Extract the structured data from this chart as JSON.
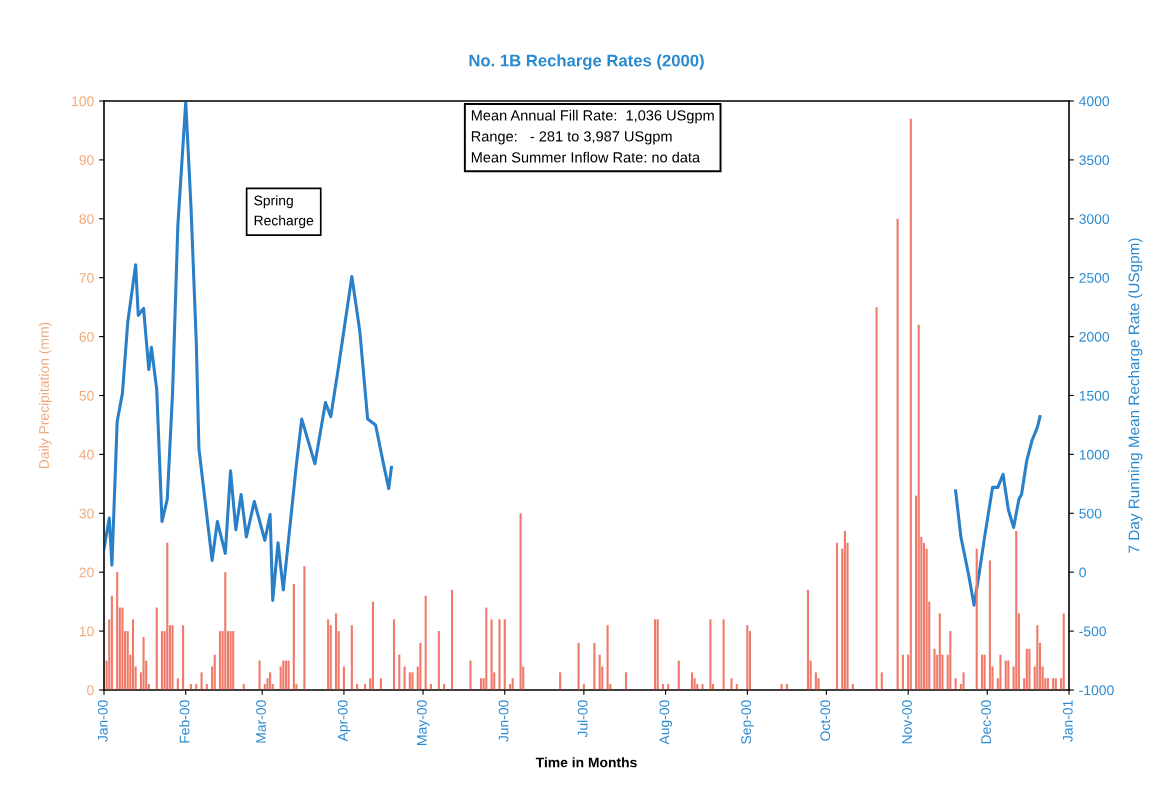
{
  "chart_data": {
    "type": "bar",
    "title": "No. 1B Recharge Rates (2000)",
    "xlabel": "Time in Months",
    "ylabel": "Daily Precipitation (mm)",
    "y2label": "7 Day Running Mean Recharge Rate (USgpm)",
    "xlim": [
      "2000-01-01",
      "2001-01-01"
    ],
    "xticks": [
      {
        "value": "2000-01-01",
        "label": "Jan-00"
      },
      {
        "value": "2000-02-01",
        "label": "Feb-00"
      },
      {
        "value": "2000-03-01",
        "label": "Mar-00"
      },
      {
        "value": "2000-04-01",
        "label": "Apr-00"
      },
      {
        "value": "2000-05-01",
        "label": "May-00"
      },
      {
        "value": "2000-06-01",
        "label": "Jun-00"
      },
      {
        "value": "2000-07-01",
        "label": "Jul-00"
      },
      {
        "value": "2000-08-01",
        "label": "Aug-00"
      },
      {
        "value": "2000-09-01",
        "label": "Sep-00"
      },
      {
        "value": "2000-10-01",
        "label": "Oct-00"
      },
      {
        "value": "2000-11-01",
        "label": "Nov-00"
      },
      {
        "value": "2000-12-01",
        "label": "Dec-00"
      },
      {
        "value": "2001-01-01",
        "label": "Jan-01"
      }
    ],
    "ylim": [
      0,
      100
    ],
    "yticks": [
      0,
      10,
      20,
      30,
      40,
      50,
      60,
      70,
      80,
      90,
      100
    ],
    "y2lim": [
      -1000,
      4000
    ],
    "y2ticks": [
      -1000,
      -500,
      0,
      500,
      1000,
      1500,
      2000,
      2500,
      3000,
      3500,
      4000
    ],
    "grid": false,
    "annotations": [
      "Spring\nRecharge",
      "Mean Annual Fill Rate:  1,036 USgpm\nRange:   - 281 to 3,987 USgpm\nMean Summer Inflow Rate: no data"
    ],
    "series": [
      {
        "axis": "y",
        "color": "#f07a6a",
        "x": [
          "2000-01-02",
          "2000-01-03",
          "2000-01-04",
          "2000-01-06",
          "2000-01-07",
          "2000-01-08",
          "2000-01-09",
          "2000-01-10",
          "2000-01-11",
          "2000-01-12",
          "2000-01-13",
          "2000-01-15",
          "2000-01-16",
          "2000-01-17",
          "2000-01-18",
          "2000-01-21",
          "2000-01-23",
          "2000-01-24",
          "2000-01-25",
          "2000-01-26",
          "2000-01-27",
          "2000-01-29",
          "2000-01-31",
          "2000-02-03",
          "2000-02-05",
          "2000-02-07",
          "2000-02-09",
          "2000-02-11",
          "2000-02-12",
          "2000-02-14",
          "2000-02-15",
          "2000-02-16",
          "2000-02-17",
          "2000-02-18",
          "2000-02-19",
          "2000-02-23",
          "2000-02-29",
          "2000-03-02",
          "2000-03-03",
          "2000-03-04",
          "2000-03-05",
          "2000-03-08",
          "2000-03-09",
          "2000-03-10",
          "2000-03-11",
          "2000-03-13",
          "2000-03-14",
          "2000-03-17",
          "2000-03-26",
          "2000-03-27",
          "2000-03-29",
          "2000-03-30",
          "2000-04-01",
          "2000-04-04",
          "2000-04-06",
          "2000-04-09",
          "2000-04-11",
          "2000-04-12",
          "2000-04-15",
          "2000-04-20",
          "2000-04-22",
          "2000-04-24",
          "2000-04-26",
          "2000-04-27",
          "2000-04-29",
          "2000-04-30",
          "2000-05-02",
          "2000-05-04",
          "2000-05-07",
          "2000-05-09",
          "2000-05-12",
          "2000-05-19",
          "2000-05-23",
          "2000-05-24",
          "2000-05-25",
          "2000-05-27",
          "2000-05-28",
          "2000-05-30",
          "2000-06-01",
          "2000-06-03",
          "2000-06-04",
          "2000-06-07",
          "2000-06-08",
          "2000-06-22",
          "2000-06-29",
          "2000-07-01",
          "2000-07-05",
          "2000-07-07",
          "2000-07-08",
          "2000-07-10",
          "2000-07-11",
          "2000-07-17",
          "2000-07-28",
          "2000-07-29",
          "2000-07-31",
          "2000-08-02",
          "2000-08-06",
          "2000-08-11",
          "2000-08-12",
          "2000-08-13",
          "2000-08-15",
          "2000-08-18",
          "2000-08-19",
          "2000-08-23",
          "2000-08-26",
          "2000-08-28",
          "2000-09-01",
          "2000-09-02",
          "2000-09-14",
          "2000-09-16",
          "2000-09-24",
          "2000-09-25",
          "2000-09-27",
          "2000-09-28",
          "2000-10-05",
          "2000-10-07",
          "2000-10-08",
          "2000-10-09",
          "2000-10-11",
          "2000-10-20",
          "2000-10-22",
          "2000-10-28",
          "2000-10-30",
          "2000-11-01",
          "2000-11-02",
          "2000-11-04",
          "2000-11-05",
          "2000-11-06",
          "2000-11-07",
          "2000-11-08",
          "2000-11-09",
          "2000-11-11",
          "2000-11-12",
          "2000-11-13",
          "2000-11-14",
          "2000-11-16",
          "2000-11-17",
          "2000-11-19",
          "2000-11-21",
          "2000-11-22",
          "2000-11-27",
          "2000-11-29",
          "2000-11-30",
          "2000-12-02",
          "2000-12-03",
          "2000-12-05",
          "2000-12-06",
          "2000-12-08",
          "2000-12-09",
          "2000-12-11",
          "2000-12-12",
          "2000-12-13",
          "2000-12-15",
          "2000-12-16",
          "2000-12-17",
          "2000-12-19",
          "2000-12-20",
          "2000-12-21",
          "2000-12-22",
          "2000-12-23",
          "2000-12-24",
          "2000-12-26",
          "2000-12-27",
          "2000-12-29",
          "2000-12-30"
        ],
        "values": [
          5,
          12,
          16,
          20,
          14,
          14,
          10,
          10,
          6,
          12,
          4,
          3,
          9,
          5,
          1,
          14,
          10,
          10,
          25,
          11,
          11,
          2,
          11,
          1,
          1,
          3,
          1,
          4,
          6,
          10,
          10,
          20,
          10,
          10,
          10,
          1,
          5,
          1,
          2,
          3,
          1,
          4,
          5,
          5,
          5,
          18,
          1,
          21,
          12,
          11,
          13,
          10,
          4,
          11,
          1,
          1,
          2,
          15,
          2,
          12,
          6,
          4,
          3,
          3,
          4,
          8,
          16,
          1,
          10,
          1,
          17,
          5,
          2,
          2,
          14,
          12,
          3,
          12,
          12,
          1,
          2,
          30,
          4,
          3,
          8,
          1,
          8,
          6,
          4,
          11,
          1,
          3,
          12,
          12,
          1,
          1,
          5,
          3,
          2,
          1,
          1,
          12,
          1,
          12,
          2,
          1,
          11,
          10,
          1,
          1,
          17,
          5,
          3,
          2,
          25,
          24,
          27,
          25,
          1,
          65,
          3,
          80,
          6,
          6,
          97,
          33,
          62,
          26,
          25,
          24,
          15,
          7,
          6,
          13,
          6,
          6,
          10,
          2,
          1,
          3,
          24,
          6,
          6,
          22,
          4,
          2,
          6,
          5,
          5,
          4,
          27,
          13,
          2,
          7,
          7,
          4,
          11,
          8,
          4,
          2,
          2,
          2,
          2,
          2,
          13
        ]
      },
      {
        "type": "line",
        "axis": "y2",
        "color": "#2a7fc9",
        "x": [
          "2000-01-01",
          "2000-01-03",
          "2000-01-04",
          "2000-01-06",
          "2000-01-08",
          "2000-01-10",
          "2000-01-13",
          "2000-01-14",
          "2000-01-16",
          "2000-01-18",
          "2000-01-19",
          "2000-01-21",
          "2000-01-23",
          "2000-01-25",
          "2000-01-27",
          "2000-01-29",
          "2000-02-01",
          "2000-02-03",
          "2000-02-05",
          "2000-02-06",
          "2000-02-11",
          "2000-02-13",
          "2000-02-16",
          "2000-02-18",
          "2000-02-20",
          "2000-02-22",
          "2000-02-24",
          "2000-02-27",
          "2000-03-02",
          "2000-03-04",
          "2000-03-05",
          "2000-03-07",
          "2000-03-09",
          "2000-03-14",
          "2000-03-16",
          "2000-03-21",
          "2000-03-25",
          "2000-03-27",
          "2000-03-30",
          "2000-04-04",
          "2000-04-07",
          "2000-04-10",
          "2000-04-13",
          "2000-04-16",
          "2000-04-18",
          "2000-04-19",
          "2000-07-19",
          "2000-11-19",
          "2000-11-21",
          "2000-11-24",
          "2000-11-26",
          "2000-11-28",
          "2000-11-30",
          "2000-12-03",
          "2000-12-05",
          "2000-12-07",
          "2000-12-09",
          "2000-12-11",
          "2000-12-13",
          "2000-12-14",
          "2000-12-16",
          "2000-12-18",
          "2000-12-20",
          "2000-12-21"
        ],
        "values": [
          200,
          460,
          60,
          1280,
          1520,
          2120,
          2610,
          2180,
          2240,
          1720,
          1910,
          1550,
          430,
          620,
          1520,
          2940,
          3990,
          3100,
          1950,
          1050,
          100,
          430,
          160,
          860,
          360,
          660,
          300,
          600,
          270,
          490,
          -240,
          250,
          -150,
          920,
          1300,
          920,
          1440,
          1320,
          1750,
          2510,
          2050,
          1300,
          1250,
          920,
          710,
          890,
          null,
          690,
          300,
          -30,
          -280,
          0,
          300,
          720,
          720,
          830,
          530,
          380,
          620,
          660,
          950,
          1120,
          1230,
          1320
        ]
      }
    ]
  }
}
